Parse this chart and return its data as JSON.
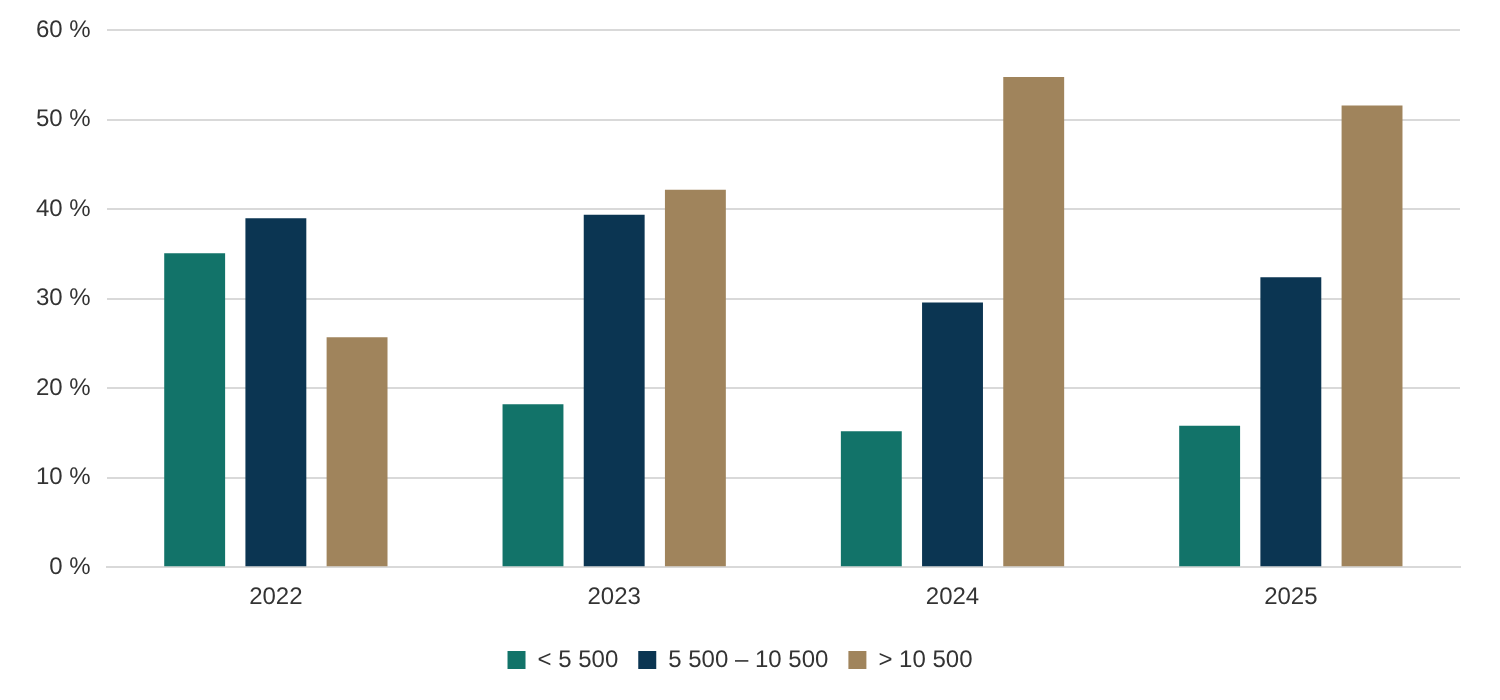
{
  "chart_data": {
    "type": "bar",
    "categories": [
      "2022",
      "2023",
      "2024",
      "2025"
    ],
    "series": [
      {
        "name": "< 5 500",
        "color": "#127369",
        "values": [
          35.1,
          18.2,
          15.2,
          15.8
        ]
      },
      {
        "name": "5 500 – 10 500",
        "color": "#0b3552",
        "values": [
          39.0,
          39.4,
          29.6,
          32.4
        ]
      },
      {
        "name": "> 10 500",
        "color": "#a0845c",
        "values": [
          25.7,
          42.2,
          54.8,
          51.6
        ]
      }
    ],
    "ylim": [
      0,
      60
    ],
    "yticks": [
      {
        "value": 0,
        "label": "0 %"
      },
      {
        "value": 10,
        "label": "10 %"
      },
      {
        "value": 20,
        "label": "20 %"
      },
      {
        "value": 30,
        "label": "30 %"
      },
      {
        "value": 40,
        "label": "40 %"
      },
      {
        "value": 50,
        "label": "50 %"
      },
      {
        "value": 60,
        "label": "60 %"
      }
    ],
    "grid": "y",
    "legend": "bottom"
  }
}
